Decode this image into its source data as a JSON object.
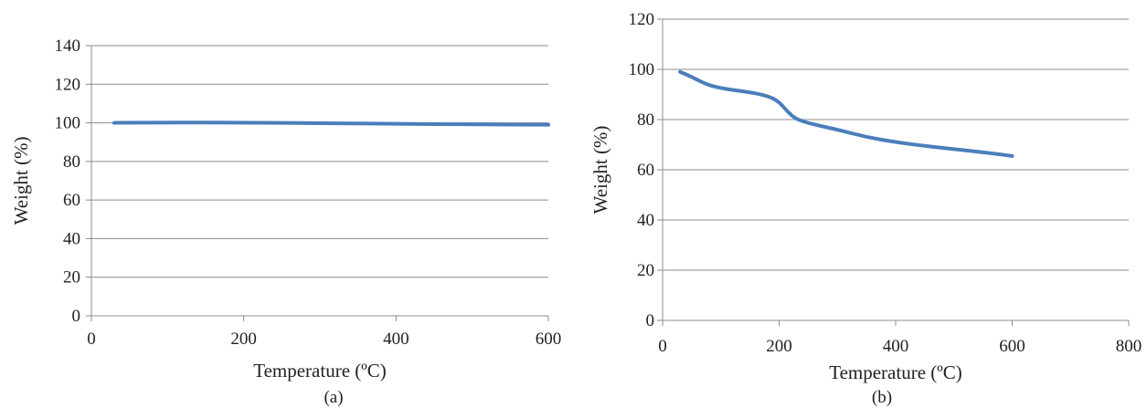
{
  "colors": {
    "line": "#4a7ebb",
    "grid": "#8c8c8c",
    "text": "#222222"
  },
  "chart_data": [
    {
      "type": "line",
      "panel_label": "(a)",
      "xlabel": "Temperature (ºC)",
      "ylabel": "Weight (%)",
      "xlim": [
        0,
        600
      ],
      "ylim": [
        0,
        140
      ],
      "xticks": [
        0,
        200,
        400,
        600
      ],
      "yticks": [
        0,
        20,
        40,
        60,
        80,
        100,
        120,
        140
      ],
      "grid": true,
      "series": [
        {
          "x": [
            30,
            100,
            200,
            300,
            400,
            500,
            600
          ],
          "y": [
            100,
            100.2,
            100.1,
            99.8,
            99.5,
            99.2,
            99.0
          ]
        }
      ]
    },
    {
      "type": "line",
      "panel_label": "(b)",
      "xlabel": "Temperature (ºC)",
      "ylabel": "Weight (%)",
      "xlim": [
        0,
        800
      ],
      "ylim": [
        0,
        120
      ],
      "xticks": [
        0,
        200,
        400,
        600,
        800
      ],
      "yticks": [
        0,
        20,
        40,
        60,
        80,
        100,
        120
      ],
      "grid": true,
      "series": [
        {
          "x": [
            30,
            50,
            75,
            100,
            130,
            160,
            185,
            200,
            215,
            230,
            260,
            300,
            350,
            400,
            450,
            500,
            550,
            600
          ],
          "y": [
            99,
            97,
            94,
            92.5,
            91.5,
            90.5,
            89,
            87,
            83,
            80,
            78,
            76,
            73,
            71,
            69.5,
            68.2,
            67,
            65.5
          ]
        }
      ]
    }
  ]
}
